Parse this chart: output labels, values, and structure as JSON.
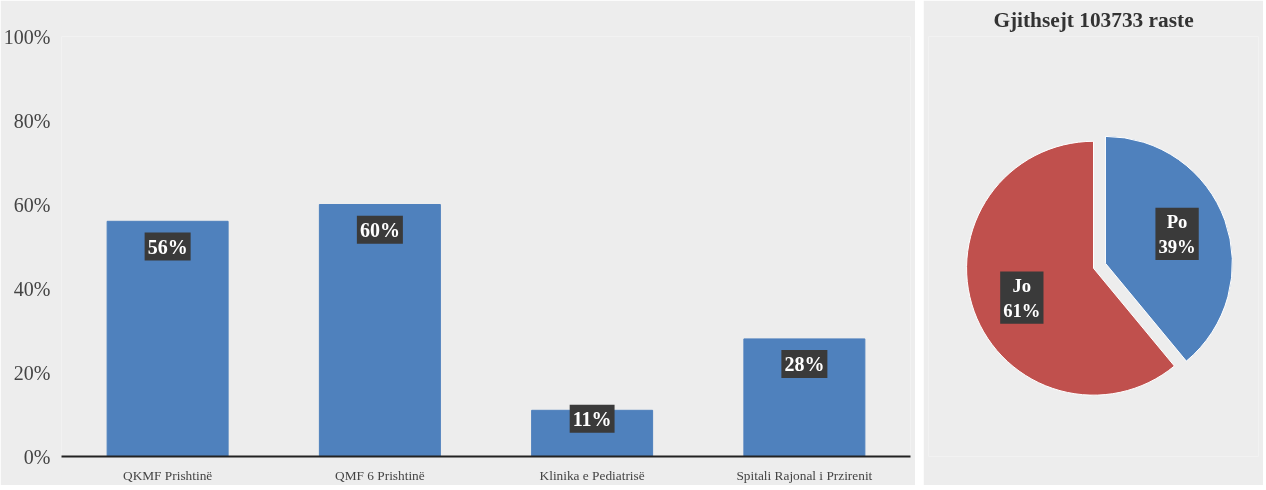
{
  "chart_data": [
    {
      "type": "bar",
      "categories": [
        "QKMF Prishtinë",
        "QMF 6 Prishtinë",
        "Klinika e Pediatrisë",
        "Spitali Rajonal i Przirenit"
      ],
      "values": [
        56,
        60,
        11,
        28
      ],
      "color": "#4f81bd",
      "value_labels": [
        "56%",
        "60%",
        "11%",
        "28%"
      ],
      "ylim": [
        0,
        100
      ],
      "yticks": [
        {
          "value": 0,
          "label": "0%"
        },
        {
          "value": 20,
          "label": "20%"
        },
        {
          "value": 40,
          "label": "40%"
        },
        {
          "value": 60,
          "label": "60%"
        },
        {
          "value": 80,
          "label": "80%"
        },
        {
          "value": 100,
          "label": "100%"
        }
      ],
      "grid": false
    },
    {
      "type": "pie",
      "title": "Gjithsejt 103733 raste",
      "categories": [
        "Po",
        "Jo"
      ],
      "values": [
        39,
        61
      ],
      "colors": [
        "#4f81bd",
        "#c0504d"
      ],
      "value_labels": [
        "39%",
        "61%"
      ]
    }
  ]
}
